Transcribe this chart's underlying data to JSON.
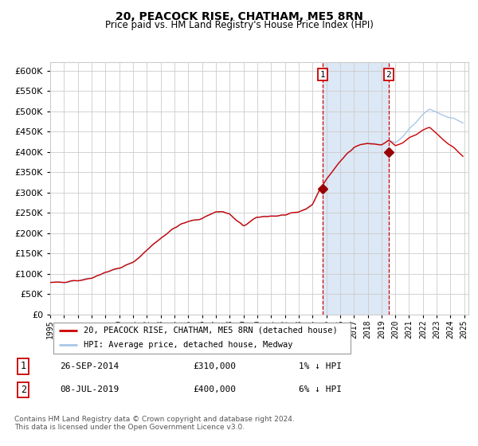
{
  "title": "20, PEACOCK RISE, CHATHAM, ME5 8RN",
  "subtitle": "Price paid vs. HM Land Registry's House Price Index (HPI)",
  "legend_line1": "20, PEACOCK RISE, CHATHAM, ME5 8RN (detached house)",
  "legend_line2": "HPI: Average price, detached house, Medway",
  "annotation1_label": "1",
  "annotation1_date": "26-SEP-2014",
  "annotation1_price": "£310,000",
  "annotation1_hpi": "1% ↓ HPI",
  "annotation2_label": "2",
  "annotation2_date": "08-JUL-2019",
  "annotation2_price": "£400,000",
  "annotation2_hpi": "6% ↓ HPI",
  "footer": "Contains HM Land Registry data © Crown copyright and database right 2024.\nThis data is licensed under the Open Government Licence v3.0.",
  "hpi_color": "#a8c8e8",
  "price_color": "#cc0000",
  "point_color": "#990000",
  "vline_color": "#cc0000",
  "shade_color": "#dce8f5",
  "grid_color": "#cccccc",
  "bg_color": "#ffffff",
  "ylim": [
    0,
    620000
  ],
  "ytick_step": 50000,
  "xstart_year": 1995,
  "xend_year": 2025,
  "sale1_year": 2014.74,
  "sale1_price": 310000,
  "sale2_year": 2019.52,
  "sale2_price": 400000
}
